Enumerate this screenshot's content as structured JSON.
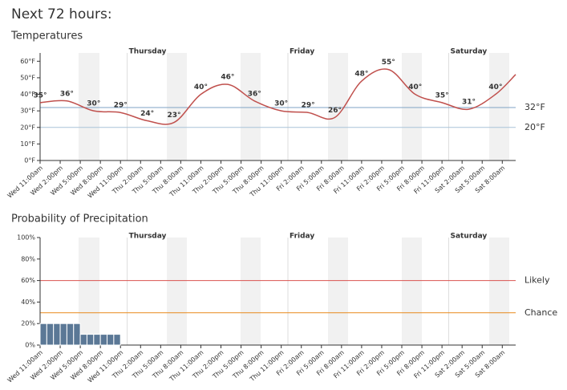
{
  "heading": "Next 72 hours:",
  "chart_data": [
    {
      "type": "line",
      "title": "Temperatures",
      "x": [
        "Wed 11:00am",
        "Wed 3:00pm",
        "Wed 7:00pm",
        "Wed 11:00pm",
        "Thu 3:00am",
        "Thu 7:00am",
        "Thu 11:00am",
        "Thu 3:00pm",
        "Thu 7:00pm",
        "Thu 11:00pm",
        "Fri 3:00am",
        "Fri 7:00am",
        "Fri 11:00am",
        "Fri 3:00pm",
        "Fri 7:00pm",
        "Fri 11:00pm",
        "Sat 3:00am",
        "Sat 7:00am",
        "Sat 10:00am"
      ],
      "series": [
        {
          "name": "Temperature",
          "color": "#c0504d",
          "values": [
            35,
            36,
            30,
            29,
            24,
            23,
            40,
            46,
            36,
            30,
            29,
            26,
            48,
            55,
            40,
            35,
            31,
            40,
            52
          ],
          "value_labels": [
            "35°",
            "36°",
            "30°",
            "29°",
            "24°",
            "23°",
            "40°",
            "46°",
            "36°",
            "30°",
            "29°",
            "26°",
            "48°",
            "55°",
            "40°",
            "35°",
            "31°",
            "40°",
            null
          ]
        }
      ],
      "xlim": [
        "Wed 11:00am",
        "Sat 10:00am"
      ],
      "xticks": [
        "Wed 11:00am",
        "Wed 2:00pm",
        "Wed 5:00pm",
        "Wed 8:00pm",
        "Wed 11:00pm",
        "Thu 2:00am",
        "Thu 5:00am",
        "Thu 8:00am",
        "Thu 11:00am",
        "Thu 2:00pm",
        "Thu 5:00pm",
        "Thu 8:00pm",
        "Thu 11:00pm",
        "Fri 2:00am",
        "Fri 5:00am",
        "Fri 8:00am",
        "Fri 11:00am",
        "Fri 2:00pm",
        "Fri 5:00pm",
        "Fri 8:00pm",
        "Fri 11:00pm",
        "Sat 2:00am",
        "Sat 5:00am",
        "Sat 8:00am"
      ],
      "day_labels": [
        "Thursday",
        "Friday",
        "Saturday"
      ],
      "ylim": [
        0,
        65
      ],
      "yticks": [
        {
          "value": 0,
          "label": "0°F"
        },
        {
          "value": 10,
          "label": "10°F"
        },
        {
          "value": 20,
          "label": "20°F"
        },
        {
          "value": 30,
          "label": "30°F"
        },
        {
          "value": 40,
          "label": "40°F"
        },
        {
          "value": 50,
          "label": "50°F"
        },
        {
          "value": 60,
          "label": "60°F"
        }
      ],
      "reference_lines": [
        {
          "value": 32,
          "label": "32°F",
          "color": "#7fa3c4"
        },
        {
          "value": 20,
          "label": "20°F",
          "color": "#a9c3d8"
        }
      ]
    },
    {
      "type": "bar",
      "title": "Probability of Precipitation",
      "x": [
        "Wed 11:00am",
        "Wed 12:00pm",
        "Wed 1:00pm",
        "Wed 2:00pm",
        "Wed 3:00pm",
        "Wed 4:00pm",
        "Wed 5:00pm",
        "Wed 6:00pm",
        "Wed 7:00pm",
        "Wed 8:00pm",
        "Wed 9:00pm",
        "Wed 10:00pm"
      ],
      "series": [
        {
          "name": "Precipitation",
          "color": "#5b7896",
          "values": [
            20,
            20,
            20,
            20,
            20,
            20,
            10,
            10,
            10,
            10,
            10,
            10
          ]
        }
      ],
      "xlim": [
        "Wed 11:00am",
        "Sat 10:00am"
      ],
      "xticks": [
        "Wed 11:00am",
        "Wed 2:00pm",
        "Wed 5:00pm",
        "Wed 8:00pm",
        "Wed 11:00pm",
        "Thu 2:00am",
        "Thu 5:00am",
        "Thu 8:00am",
        "Thu 11:00am",
        "Thu 2:00pm",
        "Thu 5:00pm",
        "Thu 8:00pm",
        "Thu 11:00pm",
        "Fri 2:00am",
        "Fri 5:00am",
        "Fri 8:00am",
        "Fri 11:00am",
        "Fri 2:00pm",
        "Fri 5:00pm",
        "Fri 8:00pm",
        "Fri 11:00pm",
        "Sat 2:00am",
        "Sat 5:00am",
        "Sat 8:00am"
      ],
      "day_labels": [
        "Thursday",
        "Friday",
        "Saturday"
      ],
      "ylim": [
        0,
        100
      ],
      "yticks": [
        {
          "value": 0,
          "label": "0%"
        },
        {
          "value": 20,
          "label": "20%"
        },
        {
          "value": 40,
          "label": "40%"
        },
        {
          "value": 60,
          "label": "60%"
        },
        {
          "value": 80,
          "label": "80%"
        },
        {
          "value": 100,
          "label": "100%"
        }
      ],
      "reference_lines": [
        {
          "value": 60,
          "label": "Likely",
          "color": "#d9534f"
        },
        {
          "value": 30,
          "label": "Chance",
          "color": "#e8891a"
        }
      ]
    }
  ]
}
